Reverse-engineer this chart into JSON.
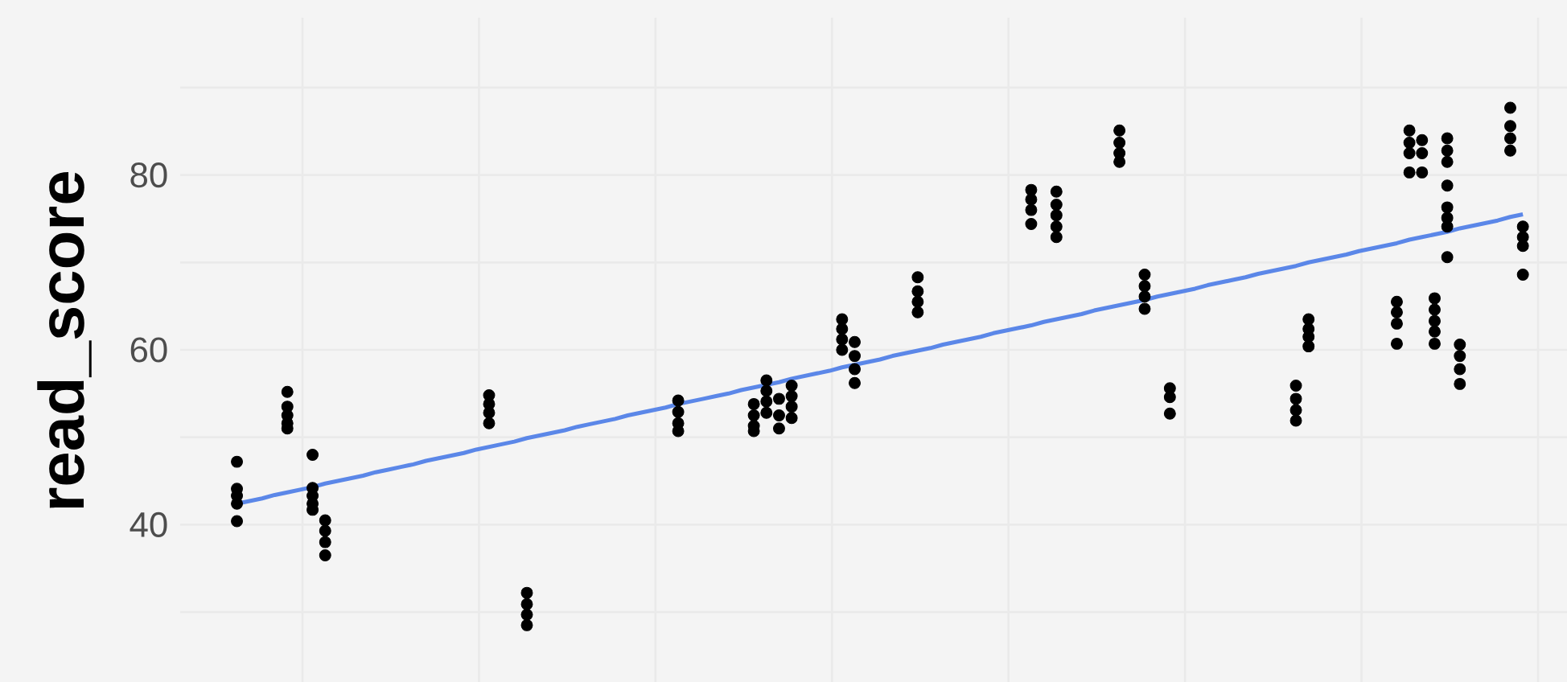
{
  "chart_data": {
    "type": "scatter",
    "ylabel": "read_score",
    "categories": [
      null,
      null,
      null,
      null,
      null,
      null,
      null,
      null,
      null,
      null,
      null,
      null,
      null,
      null,
      null,
      null,
      null,
      null,
      null,
      null,
      null,
      null,
      null,
      null,
      null,
      null,
      null,
      null,
      null,
      null,
      null,
      null,
      null,
      null,
      null,
      null,
      null,
      null,
      null,
      null,
      null,
      null,
      null,
      null,
      null,
      null,
      null,
      null,
      null,
      null,
      null,
      null,
      null,
      null,
      null,
      null,
      null,
      null,
      null,
      null,
      null,
      null,
      null,
      null,
      null,
      null,
      null,
      null,
      null,
      null,
      null,
      null,
      null,
      null,
      null,
      null,
      null,
      null,
      null,
      null,
      null,
      null,
      null,
      null,
      null,
      null,
      null,
      null,
      null,
      null,
      null,
      null,
      null,
      null,
      null,
      null,
      null,
      null,
      null,
      null,
      null,
      null,
      null,
      null,
      null,
      null,
      null,
      null,
      null,
      null
    ],
    "ylim": [
      22,
      98
    ],
    "yticks": [
      {
        "value": 30,
        "label": null
      },
      40,
      {
        "value": 50,
        "label": null
      },
      60,
      {
        "value": 70,
        "label": null
      },
      80,
      {
        "value": 90,
        "label": null
      }
    ],
    "tick_labels": "y",
    "grid": true,
    "marker": "circle",
    "series": [
      {
        "color": "#000000",
        "values": [
          null,
          null,
          null,
          null,
          47.2,
          null,
          null,
          null,
          55.2,
          null,
          48.0,
          40.5,
          null,
          null,
          null,
          null,
          null,
          null,
          null,
          null,
          null,
          null,
          null,
          null,
          54.8,
          null,
          null,
          32.2,
          null,
          null,
          null,
          null,
          null,
          null,
          null,
          null,
          null,
          null,
          null,
          54.2,
          null,
          null,
          null,
          null,
          null,
          53.8,
          56.5,
          54.4,
          55.9,
          null,
          null,
          null,
          63.5,
          60.9,
          null,
          null,
          null,
          null,
          68.3,
          null,
          null,
          null,
          null,
          null,
          null,
          null,
          null,
          78.3,
          null,
          78.1,
          null,
          null,
          null,
          null,
          85.1,
          null,
          68.6,
          null,
          55.6,
          null,
          null,
          null,
          null,
          null,
          null,
          null,
          null,
          null,
          55.9,
          63.5,
          null,
          null,
          null,
          null,
          null,
          null,
          65.5,
          85.1,
          84.0,
          65.9,
          84.2,
          60.6,
          null,
          null,
          null,
          87.7,
          74.1,
          null,
          null,
          null
        ]
      },
      {
        "color": "#000000",
        "values": [
          null,
          null,
          null,
          null,
          44.1,
          null,
          null,
          null,
          53.5,
          null,
          44.2,
          39.3,
          null,
          null,
          null,
          null,
          null,
          null,
          null,
          null,
          null,
          null,
          null,
          null,
          53.8,
          null,
          null,
          30.9,
          null,
          null,
          null,
          null,
          null,
          null,
          null,
          null,
          null,
          null,
          null,
          52.9,
          null,
          null,
          null,
          null,
          null,
          52.5,
          55.3,
          52.5,
          54.7,
          null,
          null,
          null,
          62.4,
          59.3,
          null,
          null,
          null,
          null,
          66.7,
          null,
          null,
          null,
          null,
          null,
          null,
          null,
          null,
          77.2,
          null,
          76.6,
          null,
          null,
          null,
          null,
          83.7,
          null,
          67.3,
          null,
          54.6,
          null,
          null,
          null,
          null,
          null,
          null,
          null,
          null,
          null,
          54.4,
          62.4,
          null,
          null,
          null,
          null,
          null,
          null,
          64.3,
          83.7,
          82.5,
          64.6,
          82.8,
          59.3,
          null,
          null,
          null,
          85.6,
          72.9,
          null,
          null,
          null
        ]
      },
      {
        "color": "#000000",
        "values": [
          null,
          null,
          null,
          null,
          43.3,
          null,
          null,
          null,
          52.5,
          null,
          43.3,
          38.0,
          null,
          null,
          null,
          null,
          null,
          null,
          null,
          null,
          null,
          null,
          null,
          null,
          52.8,
          null,
          null,
          29.7,
          null,
          null,
          null,
          null,
          null,
          null,
          null,
          null,
          null,
          null,
          null,
          51.6,
          null,
          null,
          null,
          null,
          null,
          51.3,
          54.1,
          51.0,
          53.5,
          null,
          null,
          null,
          61.2,
          57.8,
          null,
          null,
          null,
          null,
          65.5,
          null,
          null,
          null,
          null,
          null,
          null,
          null,
          null,
          76.0,
          null,
          75.4,
          null,
          null,
          null,
          null,
          82.5,
          null,
          66.1,
          null,
          52.7,
          null,
          null,
          null,
          null,
          null,
          null,
          null,
          null,
          null,
          53.1,
          61.5,
          null,
          null,
          null,
          null,
          null,
          null,
          63.0,
          82.5,
          80.3,
          63.3,
          81.5,
          57.8,
          null,
          null,
          null,
          84.2,
          71.9,
          null,
          null,
          null
        ]
      },
      {
        "color": "#000000",
        "values": [
          null,
          null,
          null,
          null,
          42.4,
          null,
          null,
          null,
          51.6,
          null,
          42.4,
          36.5,
          null,
          null,
          null,
          null,
          null,
          null,
          null,
          null,
          null,
          null,
          null,
          null,
          51.6,
          null,
          null,
          28.5,
          null,
          null,
          null,
          null,
          null,
          null,
          null,
          null,
          null,
          null,
          null,
          50.7,
          null,
          null,
          null,
          null,
          null,
          50.7,
          52.8,
          null,
          52.2,
          null,
          null,
          null,
          60.0,
          56.2,
          null,
          null,
          null,
          null,
          64.3,
          null,
          null,
          null,
          null,
          null,
          null,
          null,
          null,
          74.4,
          null,
          74.1,
          null,
          null,
          null,
          null,
          81.5,
          null,
          64.7,
          null,
          null,
          null,
          null,
          null,
          null,
          null,
          null,
          null,
          null,
          null,
          51.9,
          60.4,
          null,
          null,
          null,
          null,
          null,
          null,
          60.7,
          80.3,
          null,
          62.1,
          78.8,
          56.1,
          null,
          null,
          null,
          82.8,
          68.6,
          null,
          null,
          null
        ]
      },
      {
        "color": "#000000",
        "values": [
          null,
          null,
          null,
          null,
          40.4,
          null,
          null,
          null,
          51.0,
          null,
          41.7,
          null,
          null,
          null,
          null,
          null,
          null,
          null,
          null,
          null,
          null,
          null,
          null,
          null,
          null,
          null,
          null,
          null,
          null,
          null,
          null,
          null,
          null,
          null,
          null,
          null,
          null,
          null,
          null,
          null,
          null,
          null,
          null,
          null,
          null,
          null,
          null,
          null,
          null,
          null,
          null,
          null,
          null,
          null,
          null,
          null,
          null,
          null,
          null,
          null,
          null,
          null,
          null,
          null,
          null,
          null,
          null,
          null,
          null,
          72.9,
          null,
          null,
          null,
          null,
          null,
          null,
          null,
          null,
          null,
          null,
          null,
          null,
          null,
          null,
          null,
          null,
          null,
          null,
          null,
          null,
          null,
          null,
          null,
          null,
          null,
          null,
          null,
          null,
          null,
          60.7,
          76.3,
          null,
          null,
          null,
          null,
          null,
          null,
          null,
          null,
          null
        ]
      },
      {
        "color": "#000000",
        "values": [
          null,
          null,
          null,
          null,
          null,
          null,
          null,
          null,
          null,
          null,
          null,
          null,
          null,
          null,
          null,
          null,
          null,
          null,
          null,
          null,
          null,
          null,
          null,
          null,
          null,
          null,
          null,
          null,
          null,
          null,
          null,
          null,
          null,
          null,
          null,
          null,
          null,
          null,
          null,
          null,
          null,
          null,
          null,
          null,
          null,
          null,
          null,
          null,
          null,
          null,
          null,
          null,
          null,
          null,
          null,
          null,
          null,
          null,
          null,
          null,
          null,
          null,
          null,
          null,
          null,
          null,
          null,
          null,
          null,
          null,
          null,
          null,
          null,
          null,
          null,
          null,
          null,
          null,
          null,
          null,
          null,
          null,
          null,
          null,
          null,
          null,
          null,
          null,
          null,
          null,
          null,
          null,
          null,
          null,
          null,
          null,
          null,
          null,
          null,
          null,
          75.1,
          null,
          null,
          null,
          null,
          null,
          null,
          null,
          null,
          null
        ]
      },
      {
        "color": "#000000",
        "values": [
          null,
          null,
          null,
          null,
          null,
          null,
          null,
          null,
          null,
          null,
          null,
          null,
          null,
          null,
          null,
          null,
          null,
          null,
          null,
          null,
          null,
          null,
          null,
          null,
          null,
          null,
          null,
          null,
          null,
          null,
          null,
          null,
          null,
          null,
          null,
          null,
          null,
          null,
          null,
          null,
          null,
          null,
          null,
          null,
          null,
          null,
          null,
          null,
          null,
          null,
          null,
          null,
          null,
          null,
          null,
          null,
          null,
          null,
          null,
          null,
          null,
          null,
          null,
          null,
          null,
          null,
          null,
          null,
          null,
          null,
          null,
          null,
          null,
          null,
          null,
          null,
          null,
          null,
          null,
          null,
          null,
          null,
          null,
          null,
          null,
          null,
          null,
          null,
          null,
          null,
          null,
          null,
          null,
          null,
          null,
          null,
          null,
          null,
          null,
          null,
          74.1,
          null,
          null,
          null,
          null,
          null,
          null,
          null,
          null,
          null
        ]
      },
      {
        "color": "#000000",
        "values": [
          null,
          null,
          null,
          null,
          null,
          null,
          null,
          null,
          null,
          null,
          null,
          null,
          null,
          null,
          null,
          null,
          null,
          null,
          null,
          null,
          null,
          null,
          null,
          null,
          null,
          null,
          null,
          null,
          null,
          null,
          null,
          null,
          null,
          null,
          null,
          null,
          null,
          null,
          null,
          null,
          null,
          null,
          null,
          null,
          null,
          null,
          null,
          null,
          null,
          null,
          null,
          null,
          null,
          null,
          null,
          null,
          null,
          null,
          null,
          null,
          null,
          null,
          null,
          null,
          null,
          null,
          null,
          null,
          null,
          null,
          null,
          null,
          null,
          null,
          null,
          null,
          null,
          null,
          null,
          null,
          null,
          null,
          null,
          null,
          null,
          null,
          null,
          null,
          null,
          null,
          null,
          null,
          null,
          null,
          null,
          null,
          null,
          null,
          null,
          null,
          70.6,
          null,
          null,
          null,
          null,
          null,
          null,
          null,
          null,
          null
        ]
      },
      {
        "type": "line",
        "color": "#5b87e8",
        "marker": "none",
        "values": [
          null,
          null,
          null,
          null,
          42.4,
          42.7,
          43.0,
          43.4,
          43.7,
          44.0,
          44.3,
          44.7,
          45.0,
          45.3,
          45.6,
          46.0,
          46.3,
          46.6,
          46.9,
          47.3,
          47.6,
          47.9,
          48.2,
          48.6,
          48.9,
          49.2,
          49.5,
          49.9,
          50.2,
          50.5,
          50.8,
          51.2,
          51.5,
          51.8,
          52.1,
          52.5,
          52.8,
          53.1,
          53.4,
          53.8,
          54.1,
          54.4,
          54.7,
          55.0,
          55.4,
          55.7,
          56.0,
          56.3,
          56.7,
          57.0,
          57.3,
          57.6,
          58.0,
          58.3,
          58.6,
          58.9,
          59.3,
          59.6,
          59.9,
          60.2,
          60.6,
          60.9,
          61.2,
          61.5,
          61.9,
          62.2,
          62.5,
          62.8,
          63.2,
          63.5,
          63.8,
          64.1,
          64.5,
          64.8,
          65.1,
          65.4,
          65.7,
          66.1,
          66.4,
          66.7,
          67.0,
          67.4,
          67.7,
          68.0,
          68.3,
          68.7,
          69.0,
          69.3,
          69.6,
          70.0,
          70.3,
          70.6,
          70.9,
          71.3,
          71.6,
          71.9,
          72.2,
          72.6,
          72.9,
          73.2,
          73.5,
          73.9,
          74.2,
          74.5,
          74.8,
          75.2,
          75.5,
          null,
          null,
          null
        ]
      }
    ]
  }
}
